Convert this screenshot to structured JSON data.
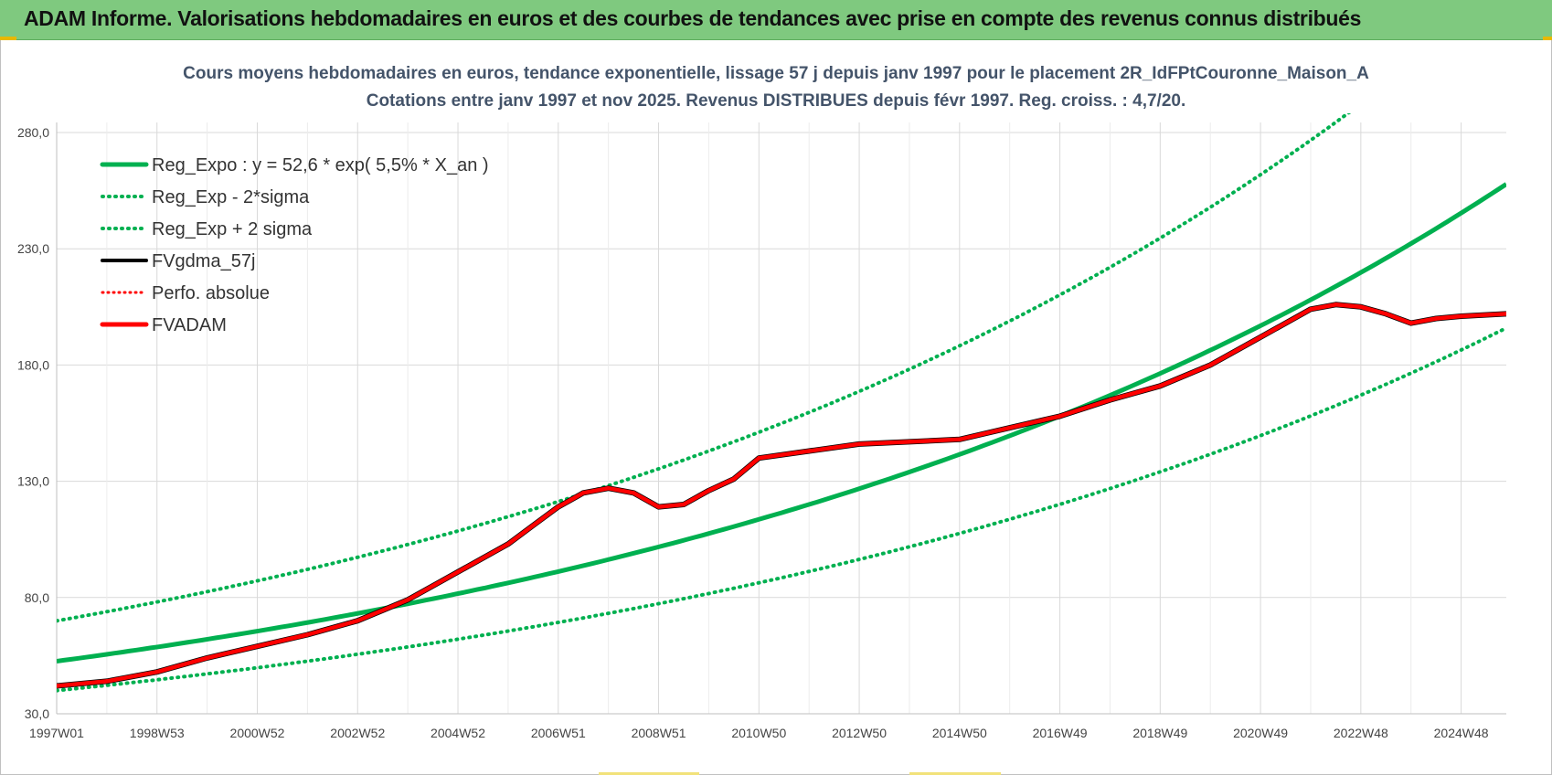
{
  "header": {
    "title": "ADAM Informe. Valorisations hebdomadaires en euros et des courbes de tendances avec prise en compte des revenus connus distribués"
  },
  "colors": {
    "header_bg": "#7fc97f",
    "trend_green": "#00b050",
    "fvadam_red": "#ff0000",
    "fvgdma_black": "#000000",
    "perfo_red": "#ff0000",
    "title_text": "#44546a"
  },
  "chart_data": {
    "type": "line",
    "title_line1": "Cours moyens hebdomadaires en euros, tendance exponentielle, lissage 57 j depuis janv 1997 pour le placement 2R_IdFPtCouronne_Maison_A",
    "title_line2": "Cotations entre janv 1997 et nov 2025. Revenus DISTRIBUES depuis févr 1997. Reg. croiss. : 4,7/20.",
    "x_ticks": [
      "1997W01",
      "1998W53",
      "2000W52",
      "2002W52",
      "2004W52",
      "2006W51",
      "2008W51",
      "2010W50",
      "2012W50",
      "2014W50",
      "2016W49",
      "2018W49",
      "2020W49",
      "2022W48",
      "2024W48"
    ],
    "x_range": [
      1997.0,
      2025.9
    ],
    "y_ticks": [
      "280,0",
      "230,0",
      "180,0",
      "130,0",
      "80,0",
      "30,0"
    ],
    "ylim": [
      30,
      280
    ],
    "grid": true,
    "legend_position": "top-left",
    "legend": [
      {
        "label": "Reg_Expo : y = 52,6 * exp( 5,5% *  X_an )",
        "style": "solid-green"
      },
      {
        "label": "Reg_Exp - 2*sigma",
        "style": "dotted-green"
      },
      {
        "label": "Reg_Exp + 2 sigma",
        "style": "dotted-green"
      },
      {
        "label": "FVgdma_57j",
        "style": "solid-black"
      },
      {
        "label": "Perfo. absolue",
        "style": "dotted-red"
      },
      {
        "label": "FVADAM",
        "style": "solid-red"
      }
    ],
    "regression": {
      "a": 52.6,
      "rate": 0.055,
      "lower_factor": 0.76,
      "upper_factor": 1.33
    },
    "series": [
      {
        "name": "FVADAM",
        "x": [
          1997.0,
          1998.0,
          1999.0,
          2000.0,
          2001.0,
          2002.0,
          2003.0,
          2004.0,
          2005.0,
          2006.0,
          2006.5,
          2007.0,
          2007.5,
          2008.0,
          2008.5,
          2009.0,
          2009.5,
          2010.0,
          2010.5,
          2011.0,
          2012.0,
          2013.0,
          2014.0,
          2015.0,
          2016.0,
          2017.0,
          2018.0,
          2019.0,
          2020.0,
          2021.0,
          2022.0,
          2022.5,
          2023.0,
          2023.5,
          2024.0,
          2024.5,
          2025.0,
          2025.9
        ],
        "values": [
          42,
          44,
          48,
          54,
          59,
          64,
          70,
          79,
          91,
          103,
          111,
          119,
          125,
          127,
          125,
          119,
          120,
          126,
          131,
          140,
          143,
          146,
          147,
          148,
          153,
          158,
          165,
          171,
          180,
          192,
          204,
          206,
          205,
          202,
          198,
          200,
          201,
          202
        ]
      }
    ]
  }
}
